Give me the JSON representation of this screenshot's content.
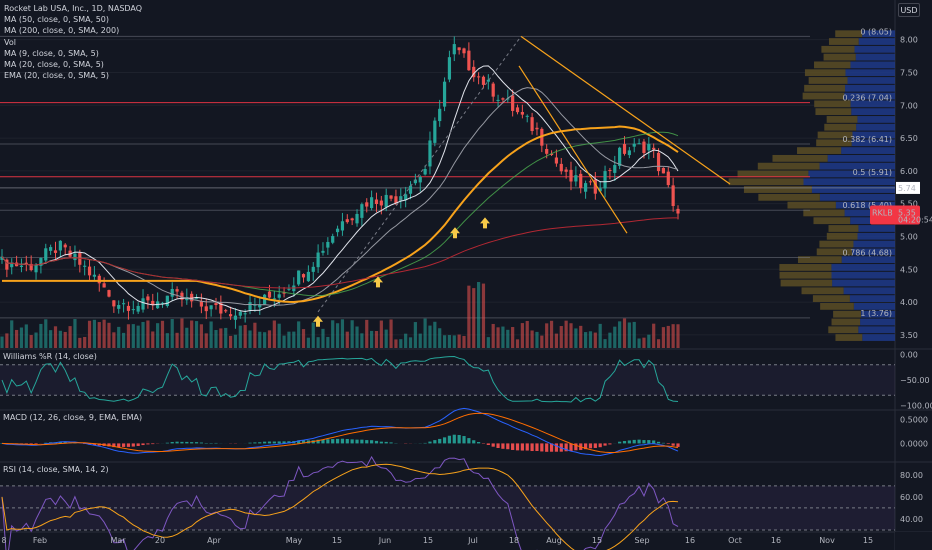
{
  "header": {
    "symbol_line": "Rocket Lab USA, Inc., 1D, NASDAQ",
    "currency_button": "USD"
  },
  "legend": [
    "MA (50, close, 0, SMA, 50)",
    "MA (200, close, 0, SMA, 200)",
    "Vol",
    "MA (9, close, 0, SMA, 5)",
    "MA (20, close, 0, SMA, 5)",
    "EMA (20, close, 0, SMA, 5)"
  ],
  "price_badges": {
    "ticker": "RKLB",
    "last": "5.35",
    "countdown": "04:20:54",
    "line_value": "5.74"
  },
  "panels": {
    "williams": "Williams %R (14, close)",
    "macd": "MACD (12, 26, close, 9, EMA, EMA)",
    "rsi": "RSI (14, close, SMA, 14, 2)"
  },
  "chart_data": [
    {
      "type": "candlestick",
      "title": "Rocket Lab USA, Inc., 1D, NASDAQ",
      "x_ticks": [
        "8",
        "Feb",
        "Mar",
        "20",
        "Apr",
        "May",
        "15",
        "Jun",
        "15",
        "Jul",
        "18",
        "Aug",
        "15",
        "Sep",
        "16",
        "Oct",
        "16",
        "Nov",
        "15"
      ],
      "y_ticks": [
        8.0,
        7.5,
        7.0,
        6.5,
        6.0,
        5.5,
        5.0,
        4.5,
        4.0,
        3.5
      ],
      "ylim": [
        3.3,
        8.3
      ],
      "fib_levels": [
        {
          "label": "0 (8.05)",
          "value": 8.05
        },
        {
          "label": "0.236 (7.04)",
          "value": 7.04,
          "color": "#f23645"
        },
        {
          "label": "0.382 (6.41)",
          "value": 6.41
        },
        {
          "label": "0.5 (5.91)",
          "value": 5.91,
          "color": "#f23645"
        },
        {
          "label": "0.618 (5.40)",
          "value": 5.4
        },
        {
          "label": "0.786 (4.68)",
          "value": 4.68
        },
        {
          "label": "1 (3.76)",
          "value": 3.76
        }
      ],
      "horizontal_lines": [
        {
          "value": 5.74,
          "color": "#9598a1"
        }
      ],
      "close_path": [
        [
          "8",
          4.6
        ],
        [
          "Feb",
          4.55
        ],
        [
          "Feb+",
          4.85
        ],
        [
          "mid-Feb",
          4.5
        ],
        [
          "Mar",
          4.0
        ],
        [
          "20",
          3.95
        ],
        [
          "Apr",
          4.1
        ],
        [
          "Apr+",
          3.95
        ],
        [
          "May",
          3.85
        ],
        [
          "May+",
          3.95
        ],
        [
          "15",
          4.2
        ],
        [
          "Jun",
          4.6
        ],
        [
          "Jun+",
          5.2
        ],
        [
          "15",
          5.55
        ],
        [
          "Jul",
          5.6
        ],
        [
          "Jul+",
          6.0
        ],
        [
          "18",
          7.9
        ],
        [
          "Jul++",
          7.4
        ],
        [
          "Aug",
          7.0
        ],
        [
          "Aug+",
          6.6
        ],
        [
          "15",
          5.9
        ],
        [
          "Aug++",
          5.7
        ],
        [
          "Sep",
          6.3
        ],
        [
          "Sep+",
          6.4
        ],
        [
          "Sep++",
          5.35
        ]
      ],
      "signals": [
        {
          "type": "buy-arrow",
          "near": "May",
          "price": 3.7
        },
        {
          "type": "buy-arrow",
          "near": "Jun",
          "price": 4.3
        },
        {
          "type": "buy-arrow",
          "near": "15",
          "price": 5.05
        },
        {
          "type": "buy-arrow",
          "near": "Jul",
          "price": 5.2
        }
      ]
    },
    {
      "type": "line",
      "title": "Williams %R (14, close)",
      "y_ticks": [
        "0.00",
        "−50.00",
        "−100.00"
      ],
      "ylim": [
        -105,
        5
      ]
    },
    {
      "type": "histogram",
      "title": "MACD (12, 26, close, 9, EMA, EMA)",
      "y_ticks": [
        "0.5000",
        "0.0000"
      ],
      "ylim": [
        -0.35,
        0.62
      ]
    },
    {
      "type": "line",
      "title": "RSI (14, close, SMA, 14, 2)",
      "y_ticks": [
        "80.00",
        "60.00",
        "40.00"
      ],
      "ylim": [
        30,
        88
      ]
    }
  ]
}
